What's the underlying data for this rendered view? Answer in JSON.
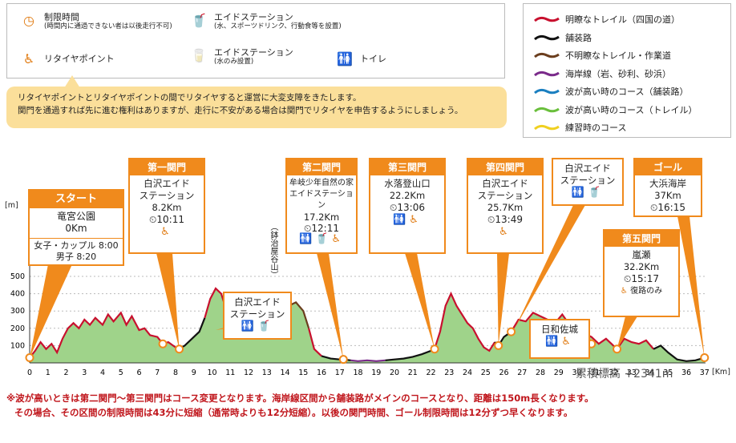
{
  "legend": {
    "time_limit": {
      "title": "制限時間",
      "sub": "(時間内に通過できない者は以後走行不可)",
      "icon": "clock-icon"
    },
    "retire": {
      "title": "リタイヤポイント",
      "icon": "retire-icon"
    },
    "aid_full": {
      "title": "エイドステーション",
      "sub": "(水、スポーツドリンク、行動食等を設置)",
      "icon": "cup-icon"
    },
    "aid_water": {
      "title": "エイドステーション",
      "sub": "(水のみ設置)",
      "icon": "cup-icon"
    },
    "toilet": {
      "title": "トイレ",
      "icon": "toilet-icon"
    }
  },
  "note": {
    "line1": "リタイヤポイントとリタイヤポイントの間でリタイヤすると運営に大変支障をきたします。",
    "line2": "関門を通過すれば先に進む権利はありますが、走行に不安がある場合は関門でリタイヤを申告するようにしましょう。"
  },
  "line_legend": [
    {
      "label": "明瞭なトレイル（四国の道）",
      "color": "#c8102e",
      "bold": true
    },
    {
      "label": "舗装路",
      "color": "#111111",
      "bold": false
    },
    {
      "label": "不明瞭なトレイル・作業道",
      "color": "#6b3e1e",
      "bold": false
    },
    {
      "label": "海岸線（岩、砂利、砂浜）",
      "color": "#7a2a8a",
      "bold": false
    },
    {
      "label": "波が高い時のコース（舗装路）",
      "color": "#1a7fc0",
      "bold": false
    },
    {
      "label": "波が高い時のコース（トレイル）",
      "color": "#6abf3c",
      "bold": false
    },
    {
      "label": "練習時のコース",
      "color": "#f0d020",
      "bold": false
    }
  ],
  "chart": {
    "y_unit": "[m]",
    "x_unit": "[Km]",
    "y_ticks": [
      "500",
      "400",
      "300",
      "200",
      "100"
    ],
    "x_ticks": [
      "0",
      "1",
      "2",
      "3",
      "4",
      "5",
      "6",
      "7",
      "8",
      "9",
      "10",
      "11",
      "12",
      "13",
      "14",
      "15",
      "16",
      "17",
      "18",
      "19",
      "20",
      "21",
      "22",
      "23",
      "24",
      "25",
      "26",
      "27",
      "28",
      "29",
      "30",
      "31",
      "32",
      "33",
      "34",
      "35",
      "36",
      "37"
    ],
    "vertical_label": "（鉢治屋谷山）",
    "cumulative": "累積標高 +2341m"
  },
  "start": {
    "header": "スタート",
    "place": "竜宮公園",
    "dist": "0Km",
    "row1_label": "女子・カップル",
    "row1_time": "8:00",
    "row2_label": "男子",
    "row2_time": "8:20"
  },
  "gates": [
    {
      "header": "第一関門",
      "name1": "白沢エイド",
      "name2": "ステーション",
      "dist": "8.2Km",
      "time": "10:11"
    },
    {
      "header": "第二関門",
      "name1": "牟岐少年自然の家",
      "name2": "エイドステーション",
      "dist": "17.2Km",
      "time": "12:11"
    },
    {
      "header": "第三関門",
      "name1": "水落登山口",
      "name2": "",
      "dist": "22.2Km",
      "time": "13:06"
    },
    {
      "header": "第四関門",
      "name1": "白沢エイド",
      "name2": "ステーション",
      "dist": "25.7Km",
      "time": "13:49"
    },
    {
      "header": "第五関門",
      "name1": "嵐瀬",
      "name2": "",
      "dist": "32.2Km",
      "time": "15:17",
      "note": "復路のみ"
    },
    {
      "header": "ゴール",
      "name1": "大浜海岸",
      "name2": "",
      "dist": "37Km",
      "time": "16:15"
    }
  ],
  "aid_mid": {
    "name1": "白沢エイド",
    "name2": "ステーション"
  },
  "aid_top": {
    "name1": "白沢エイド",
    "name2": "ステーション"
  },
  "hiwasa": {
    "name": "日和佐城"
  },
  "clock_glyph": "⏲",
  "footnote": {
    "line1": "※波が高いときは第二関門〜第三関門はコース変更となります。海岸線区間から舗装路がメインのコースとなり、距離は150m長くなります。",
    "line2": "その場合、その区間の制限時間は43分に短縮（通常時よりも12分短縮）。以後の関門時間、ゴール制限時間は12分ずつ早くなります。"
  }
}
